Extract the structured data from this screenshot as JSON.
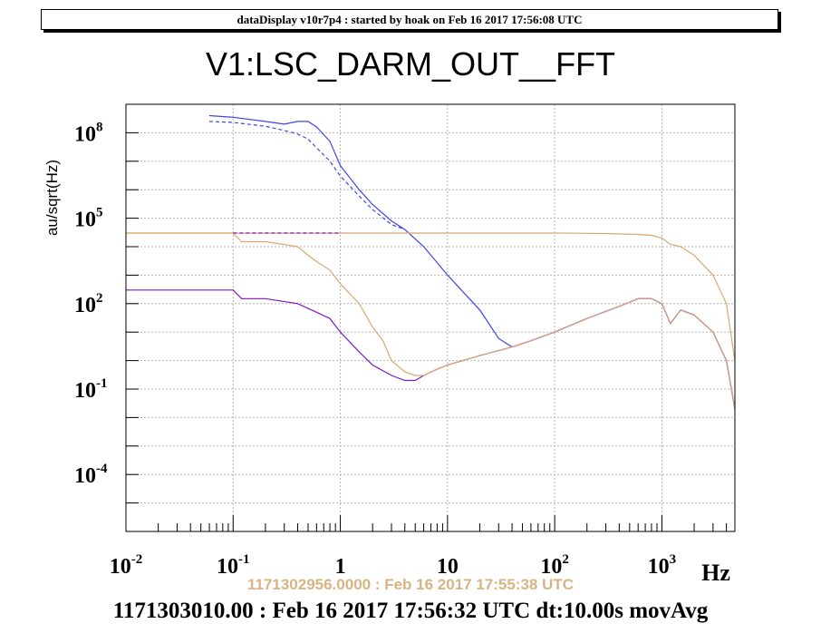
{
  "header": {
    "text": "dataDisplay v10r7p4 : started by hoak on Feb 16 2017 17:56:08 UTC"
  },
  "chart_data": {
    "type": "line",
    "title": "V1:LSC_DARM_OUT__FFT",
    "xlabel": "Hz",
    "ylabel": "au/sqrt(Hz)",
    "xscale": "log",
    "yscale": "log",
    "xlim": [
      0.01,
      4800
    ],
    "ylim": [
      1e-06,
      1000000000
    ],
    "grid": true,
    "xticks": [
      {
        "value": 0.01,
        "mantissa": "10",
        "exp": "-2"
      },
      {
        "value": 0.1,
        "mantissa": "10",
        "exp": "-1"
      },
      {
        "value": 1,
        "mantissa": "1",
        "exp": ""
      },
      {
        "value": 10,
        "mantissa": "10",
        "exp": ""
      },
      {
        "value": 100,
        "mantissa": "10",
        "exp": "2"
      },
      {
        "value": 1000,
        "mantissa": "10",
        "exp": "3"
      }
    ],
    "yticks": [
      {
        "value": 0.0001,
        "mantissa": "10",
        "exp": "-4"
      },
      {
        "value": 0.1,
        "mantissa": "10",
        "exp": "-1"
      },
      {
        "value": 100,
        "mantissa": "10",
        "exp": "2"
      },
      {
        "value": 100000,
        "mantissa": "10",
        "exp": "5"
      },
      {
        "value": 100000000,
        "mantissa": "10",
        "exp": "8"
      }
    ],
    "series": [
      {
        "color": "#3b45e8",
        "style": "solid",
        "x": [
          0.06,
          0.1,
          0.2,
          0.3,
          0.4,
          0.5,
          0.6,
          0.8,
          1,
          1.5,
          2,
          3,
          4,
          6,
          10,
          20,
          30,
          40,
          60,
          100,
          200,
          400,
          600,
          800,
          1000,
          1200,
          1500,
          2000,
          3000,
          4000,
          4800
        ],
        "y": [
          400000000,
          350000000,
          250000000,
          200000000,
          250000000,
          250000000,
          160000000,
          50000000,
          7000000,
          1000000,
          300000,
          80000,
          40000,
          10000,
          1000,
          60,
          6,
          3,
          5,
          10,
          30,
          80,
          150,
          150,
          100,
          20,
          60,
          40,
          10,
          1,
          0.02
        ]
      },
      {
        "color": "#3b45e8",
        "style": "dashed",
        "x": [
          0.06,
          0.1,
          0.2,
          0.3,
          0.4,
          0.5,
          0.6,
          0.8,
          1,
          1.5,
          2,
          3,
          4
        ],
        "y": [
          250000000,
          230000000,
          170000000,
          120000000,
          90000000,
          60000000,
          30000000,
          10000000,
          3000000,
          600000,
          200000,
          60000,
          40000
        ]
      },
      {
        "color": "#7b16c8",
        "style": "solid",
        "x": [
          0.01,
          0.1,
          0.12,
          0.2,
          0.4,
          0.6,
          0.8,
          1,
          1.5,
          2,
          3,
          4,
          5,
          6,
          8,
          10,
          20,
          40,
          60,
          100,
          200,
          400,
          600,
          800,
          1000,
          1200,
          1500,
          2000,
          3000,
          4000,
          4800
        ],
        "y": [
          300,
          300,
          150,
          150,
          100,
          50,
          30,
          10,
          2,
          0.7,
          0.3,
          0.2,
          0.2,
          0.3,
          0.5,
          0.7,
          1.5,
          3,
          5,
          10,
          30,
          80,
          150,
          150,
          100,
          20,
          60,
          40,
          10,
          1,
          0.02
        ]
      },
      {
        "color": "#d8a872",
        "style": "solid",
        "x": [
          0.01,
          0.1,
          0.12,
          0.2,
          0.4,
          0.5,
          0.6,
          0.8,
          1,
          1.5,
          2,
          2.5,
          3,
          4,
          5,
          6,
          8,
          10,
          20,
          40,
          60,
          100,
          200,
          400,
          600,
          800,
          1000,
          1200,
          1500,
          2000,
          3000,
          4000,
          4800
        ],
        "y": [
          30000,
          30000,
          15000,
          15000,
          10000,
          5000,
          3000,
          1500,
          500,
          100,
          15,
          5,
          1,
          0.4,
          0.3,
          0.3,
          0.5,
          0.7,
          1.5,
          3,
          5,
          10,
          30,
          80,
          150,
          150,
          100,
          20,
          60,
          40,
          10,
          1,
          0.02
        ]
      },
      {
        "color": "#d8a872",
        "style": "solid",
        "x": [
          0.01,
          1,
          10,
          100,
          300,
          600,
          800,
          1000,
          1200,
          1500,
          2000,
          3000,
          4000,
          4800
        ],
        "y": [
          30000,
          30000,
          30000,
          30000,
          29000,
          27000,
          25000,
          20000,
          12000,
          10000,
          5000,
          1000,
          100,
          1
        ]
      },
      {
        "color": "#7b16c8",
        "style": "dashed",
        "x": [
          0.1,
          0.3,
          1
        ],
        "y": [
          30000,
          30000,
          30000
        ]
      }
    ]
  },
  "footer": {
    "ref_time": "1171302956.0000 : Feb 16 2017 17:55:38 UTC",
    "time": "1171303010.00 : Feb 16 2017 17:56:32 UTC dt:10.00s movAvg"
  }
}
